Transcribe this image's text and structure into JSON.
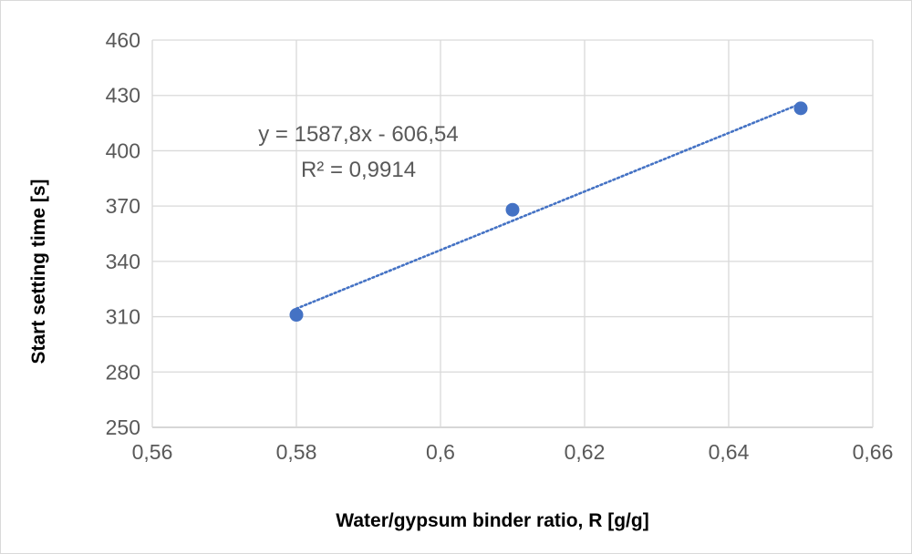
{
  "chart_data": {
    "type": "scatter",
    "title": "",
    "xlabel": "Water/gypsum binder ratio, R [g/g]",
    "ylabel": "Start setting time [s]",
    "xlim": [
      0.56,
      0.66
    ],
    "ylim": [
      250,
      460
    ],
    "xticks": [
      0.56,
      0.58,
      0.6,
      0.62,
      0.64,
      0.66
    ],
    "xtick_labels": [
      "0,56",
      "0,58",
      "0,6",
      "0,62",
      "0,64",
      "0,66"
    ],
    "yticks": [
      250,
      280,
      310,
      340,
      370,
      400,
      430,
      460
    ],
    "ytick_labels": [
      "250",
      "280",
      "310",
      "340",
      "370",
      "400",
      "430",
      "460"
    ],
    "grid": true,
    "series": [
      {
        "x": [
          0.58,
          0.61,
          0.65
        ],
        "y": [
          311,
          368,
          423
        ],
        "color": "#4472c4"
      }
    ],
    "trendline": {
      "type": "linear",
      "slope": 1587.8,
      "intercept": -606.54,
      "style": "dotted",
      "color": "#4472c4",
      "x_range": [
        0.58,
        0.65
      ]
    },
    "annotations": {
      "equation": "y = 1587,8x - 606,54",
      "r_squared": "R² = 0,9914"
    }
  }
}
